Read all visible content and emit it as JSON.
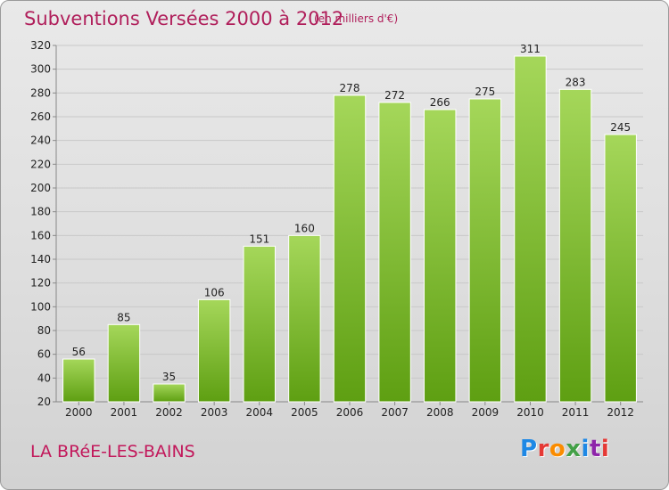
{
  "header": {
    "title": "Subventions Versées 2000 à 2012",
    "subtitle": "(en milliers d'€)"
  },
  "footer": {
    "commune": "LA BRéE-LES-BAINS",
    "logo_text": "Proxiti",
    "logo_colors": [
      "#1e88e5",
      "#e53935",
      "#fb8c00",
      "#43a047",
      "#1e88e5",
      "#8e24aa",
      "#e53935"
    ]
  },
  "colors": {
    "bar_top": "#a5d75a",
    "bar_bottom": "#5e9f12",
    "grid": "#c8c8c8",
    "axis": "#888888",
    "title": "#b01f5b"
  },
  "chart_data": {
    "type": "bar",
    "categories": [
      "2000",
      "2001",
      "2002",
      "2003",
      "2004",
      "2005",
      "2006",
      "2007",
      "2008",
      "2009",
      "2010",
      "2011",
      "2012"
    ],
    "values": [
      56,
      85,
      35,
      106,
      151,
      160,
      278,
      272,
      266,
      275,
      311,
      283,
      245
    ],
    "ylim": [
      20,
      320
    ],
    "yticks": [
      20,
      40,
      60,
      80,
      100,
      120,
      140,
      160,
      180,
      200,
      220,
      240,
      260,
      280,
      300,
      320
    ],
    "grid": true,
    "data_labels": true
  }
}
